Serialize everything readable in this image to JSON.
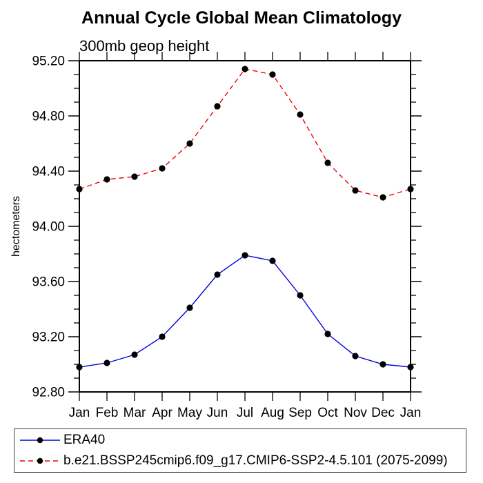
{
  "chart_data": {
    "type": "line",
    "title": "Annual Cycle Global Mean Climatology",
    "subtitle": "300mb geop height",
    "ylabel": "hectometers",
    "xlabel": "",
    "categories": [
      "Jan",
      "Feb",
      "Mar",
      "Apr",
      "May",
      "Jun",
      "Jul",
      "Aug",
      "Sep",
      "Oct",
      "Nov",
      "Dec",
      "Jan"
    ],
    "ylim": [
      92.8,
      95.2
    ],
    "ytick_labels": [
      "92.80",
      "93.20",
      "93.60",
      "94.00",
      "94.40",
      "94.80",
      "95.20"
    ],
    "y_minor_interval": 0.1,
    "grid": "off",
    "legend_position": "bottom-left-box",
    "frame_color": "#000000",
    "series": [
      {
        "name": "ERA40",
        "color": "#0000dd",
        "line_style": "solid",
        "marker": "circle",
        "marker_color": "#000000",
        "values": [
          92.98,
          93.01,
          93.07,
          93.2,
          93.41,
          93.65,
          93.79,
          93.75,
          93.5,
          93.22,
          93.06,
          93.0,
          92.98
        ]
      },
      {
        "name": "b.e21.BSSP245cmip6.f09_g17.CMIP6-SSP2-4.5.101 (2075-2099)",
        "color": "#ee0000",
        "line_style": "dashed",
        "marker": "circle",
        "marker_color": "#000000",
        "values": [
          94.27,
          94.34,
          94.36,
          94.42,
          94.6,
          94.87,
          95.14,
          95.1,
          94.81,
          94.46,
          94.26,
          94.21,
          94.27
        ]
      }
    ]
  }
}
